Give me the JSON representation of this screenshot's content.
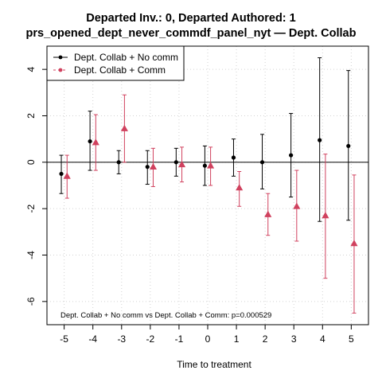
{
  "chart_data": {
    "type": "scatter",
    "title": "Departed Inv.: 0, Departed Authored: 1",
    "subtitle": "prs_opened_dept_never_commdf_panel_nyt — Dept. Collab",
    "xlabel": "Time to treatment",
    "ylabel": "",
    "xlim": [
      -5.6,
      5.6
    ],
    "ylim": [
      -7.0,
      5.0
    ],
    "x_ticks": [
      -5,
      -4,
      -3,
      -2,
      -1,
      0,
      1,
      2,
      3,
      4,
      5
    ],
    "y_ticks": [
      -6,
      -4,
      -2,
      0,
      2,
      4
    ],
    "grid": true,
    "legend_position": "top-left",
    "annotation": "Dept. Collab + No comm vs Dept. Collab + Comm: p=0.000529",
    "series": [
      {
        "name": "Dept. Collab + No comm",
        "color": "#000000",
        "marker": "circle",
        "line_style": "solid",
        "offset": -0.1,
        "x": [
          -5,
          -4,
          -3,
          -2,
          -1,
          0,
          1,
          2,
          3,
          4,
          5
        ],
        "y": [
          -0.5,
          0.9,
          0.0,
          -0.2,
          0.0,
          -0.15,
          0.2,
          0.0,
          0.3,
          0.95,
          0.7
        ],
        "lower": [
          -1.35,
          -0.35,
          -0.5,
          -0.95,
          -0.6,
          -1.0,
          -0.6,
          -1.15,
          -1.5,
          -2.55,
          -2.5
        ],
        "upper": [
          0.3,
          2.2,
          0.5,
          0.5,
          0.6,
          0.7,
          1.0,
          1.2,
          2.1,
          4.5,
          3.95
        ]
      },
      {
        "name": "Dept. Collab + Comm",
        "color": "#d0415e",
        "marker": "triangle",
        "line_style": "dashed",
        "offset": 0.1,
        "x": [
          -5,
          -4,
          -3,
          -2,
          -1,
          0,
          1,
          2,
          3,
          4,
          5
        ],
        "y": [
          -0.6,
          0.85,
          1.45,
          -0.2,
          -0.1,
          -0.15,
          -1.1,
          -2.25,
          -1.9,
          -2.3,
          -3.5
        ],
        "lower": [
          -1.55,
          -0.35,
          0.0,
          -1.05,
          -0.85,
          -1.0,
          -1.9,
          -3.15,
          -3.4,
          -5.0,
          -6.5
        ],
        "upper": [
          0.3,
          2.05,
          2.9,
          0.6,
          0.65,
          0.65,
          -0.4,
          -1.35,
          -0.35,
          0.35,
          -0.55
        ]
      }
    ]
  }
}
